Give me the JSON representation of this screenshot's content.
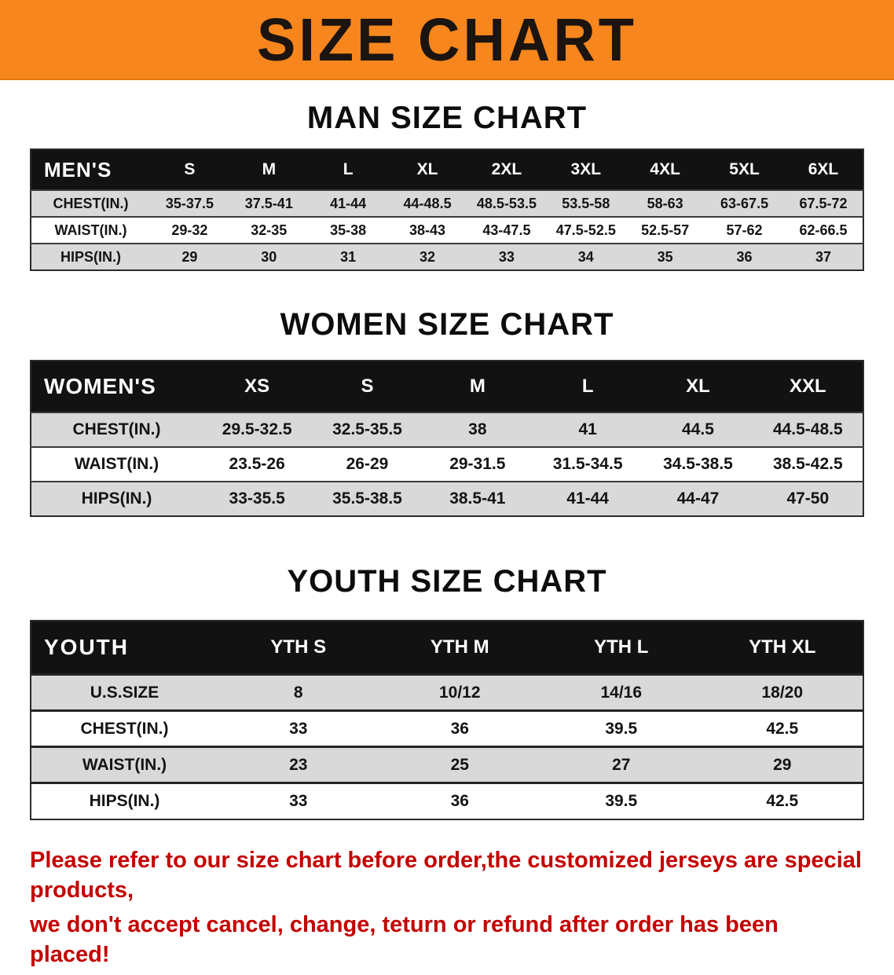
{
  "banner": {
    "title": "SIZE CHART",
    "bg_color": "#f6861d"
  },
  "sections": [
    {
      "title": "MAN SIZE CHART",
      "table": {
        "header": [
          "MEN'S",
          "S",
          "M",
          "L",
          "XL",
          "2XL",
          "3XL",
          "4XL",
          "5XL",
          "6XL"
        ],
        "rows": [
          [
            "CHEST(IN.)",
            "35-37.5",
            "37.5-41",
            "41-44",
            "44-48.5",
            "48.5-53.5",
            "53.5-58",
            "58-63",
            "63-67.5",
            "67.5-72"
          ],
          [
            "WAIST(IN.)",
            "29-32",
            "32-35",
            "35-38",
            "38-43",
            "43-47.5",
            "47.5-52.5",
            "52.5-57",
            "57-62",
            "62-66.5"
          ],
          [
            "HIPS(IN.)",
            "29",
            "30",
            "31",
            "32",
            "33",
            "34",
            "35",
            "36",
            "37"
          ]
        ]
      }
    },
    {
      "title": "WOMEN SIZE CHART",
      "table": {
        "header": [
          "WOMEN'S",
          "XS",
          "S",
          "M",
          "L",
          "XL",
          "XXL"
        ],
        "rows": [
          [
            "CHEST(IN.)",
            "29.5-32.5",
            "32.5-35.5",
            "38",
            "41",
            "44.5",
            "44.5-48.5"
          ],
          [
            "WAIST(IN.)",
            "23.5-26",
            "26-29",
            "29-31.5",
            "31.5-34.5",
            "34.5-38.5",
            "38.5-42.5"
          ],
          [
            "HIPS(IN.)",
            "33-35.5",
            "35.5-38.5",
            "38.5-41",
            "41-44",
            "44-47",
            "47-50"
          ]
        ]
      }
    },
    {
      "title": "YOUTH SIZE CHART",
      "table": {
        "header": [
          "YOUTH",
          "YTH S",
          "YTH M",
          "YTH L",
          "YTH XL"
        ],
        "rows": [
          [
            "U.S.SIZE",
            "8",
            "10/12",
            "14/16",
            "18/20"
          ],
          [
            "CHEST(IN.)",
            "33",
            "36",
            "39.5",
            "42.5"
          ],
          [
            "WAIST(IN.)",
            "23",
            "25",
            "27",
            "29"
          ],
          [
            "HIPS(IN.)",
            "33",
            "36",
            "39.5",
            "42.5"
          ]
        ]
      }
    }
  ],
  "footer": {
    "line1": "Please refer to our size chart before order,the customized jerseys are special products,",
    "line2": "we don't accept cancel, change, teturn or refund after order has been placed!"
  },
  "colors": {
    "banner_orange": "#f6861d",
    "header_black": "#121212",
    "stripe_gray": "#d9d9d9",
    "notice_red": "#c40000"
  }
}
